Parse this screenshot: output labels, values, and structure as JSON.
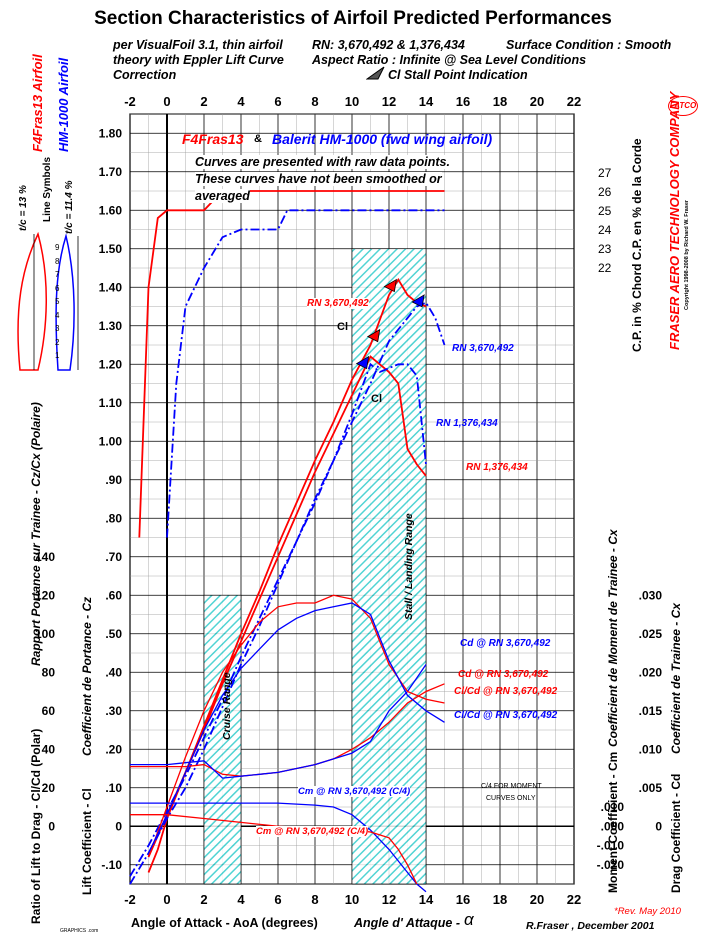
{
  "title": "Section Characteristics of Airfoil Predicted Performances",
  "subtitle": {
    "left1": "per VisualFoil 3.1, thin airfoil",
    "left2": "theory with Eppler Lift Curve",
    "left3": "Correction",
    "rn": "RN: 3,670,492  &  1,376,434",
    "surface": "Surface Condition : Smooth",
    "aspect1": "Aspect Ratio : Infinite @ Sea Level Conditions",
    "stall_indication": "Cl Stall Point Indication"
  },
  "legend": {
    "airfoil_red": "F4Fras13",
    "amp": "&",
    "airfoil_blue": "Balerit HM-1000 (fwd wing airfoil)",
    "note1": "Curves are presented with raw data points.",
    "note2": "These curves have not been smoothed or",
    "note3": "averaged"
  },
  "left_panel": {
    "red_airfoil": "F4Fras13 Airfoil",
    "blue_airfoil": "HM-1000 Airfoil",
    "line_symbols": "Line Symbols",
    "red_tc": "t/c = 13 %",
    "blue_tc": "t/c = 11.4 %",
    "cp_ticks": [
      "1",
      "2",
      "3",
      "4",
      "5",
      "6",
      "7",
      "8",
      "9"
    ]
  },
  "right_panel": {
    "company": "FRASER AERO TECHNOLOGY COMPANY",
    "logo": "FATCO",
    "copyright": "Copyright 1998-2008 by Richard W. Fraser",
    "cp_label": "C.P. in % Chord  C.P. en % de la Corde",
    "cp_ticks": [
      "27",
      "26",
      "25",
      "24",
      "23",
      "22"
    ]
  },
  "axes": {
    "x_label": "Angle of Attack - AoA (degrees)",
    "x_label_fr": "Angle d' Attaque -",
    "x_symbol": "α",
    "x_ticks": [
      "-2",
      "0",
      "2",
      "4",
      "6",
      "8",
      "10",
      "12",
      "14",
      "16",
      "18",
      "20",
      "22"
    ],
    "cl_ticks": [
      "1.80",
      "1.70",
      "1.60",
      "1.50",
      "1.40",
      "1.30",
      "1.20",
      "1.10",
      "1.00",
      ".90",
      ".80",
      ".70",
      ".60",
      ".50",
      ".40",
      ".30",
      ".20",
      ".10",
      "0",
      "-.10"
    ],
    "ld_ticks": [
      "140",
      "120",
      "100",
      "80",
      "60",
      "40",
      "20",
      "0"
    ],
    "cd_ticks": [
      ".030",
      ".025",
      ".020",
      ".015",
      ".010",
      ".005",
      "0"
    ],
    "cm_ticks": [
      ".010",
      ".000",
      "-.010",
      "-.020"
    ],
    "y_lift": "Lift Coefficient - Cl",
    "y_lift_fr": "Coefficient de Portance - Cz",
    "y_ld": "Ratio of Lift to Drag - Cl/Cd (Polar)",
    "y_ld_fr": "Rapport Portance sur Trainee - Cz/Cx (Polaire)",
    "y_cm": "Moment Coefficient - Cm",
    "y_cm_fr": "Coefficient de Moment de Trainee - Cx",
    "y_cd": "Drag Coefficient - Cd",
    "y_cd_fr": "Coefficient de Trainee - Cx"
  },
  "annotations": {
    "rn_high_red": "RN 3,670,492",
    "cl1": "Cl",
    "cl2": "Cl",
    "rn_high_blue": "RN 3,670,492",
    "rn_low_blue": "RN 1,376,434",
    "rn_low_red": "RN 1,376,434",
    "stall_range": "Stall / Landing Range",
    "cruise_range": "Cruise Range",
    "cd_blue": "Cd @ RN 3,670,492",
    "cd_red": "Cd @ RN 3,670,492",
    "clcd_red": "Cl/Cd @ RN 3,670,492",
    "clcd_blue": "Cl/Cd @ RN 3,670,492",
    "cm_blue": "Cm @ RN 3,670,492 (C/4)",
    "cm_red": "Cm @ RN 3,670,492 (C/4)",
    "moment_note1": "C/4 FOR MOMENT",
    "moment_note2": "CURVES ONLY"
  },
  "footer": {
    "rev": "*Rev. May 2010",
    "author": "R.Fraser ,  December 2001",
    "graphic": "GRAPHICS .com"
  },
  "colors": {
    "red": "#ff0000",
    "blue": "#0000ff",
    "hatch": "#66dddd"
  },
  "chart_data": {
    "type": "line",
    "title": "Section Characteristics of Airfoil Predicted Performances",
    "xlabel": "Angle of Attack - AoA (degrees)",
    "ylabel": "Lift Coefficient - Cl",
    "xlim": [
      -2,
      22
    ],
    "ylim": [
      -0.15,
      1.85
    ],
    "grid": true,
    "ranges": [
      {
        "name": "Cruise Range",
        "x": [
          2,
          4
        ],
        "y": [
          -0.15,
          0.6
        ]
      },
      {
        "name": "Stall / Landing Range",
        "x": [
          10,
          14
        ],
        "y": [
          -0.15,
          1.5
        ]
      }
    ],
    "series": [
      {
        "name": "F4Fras13",
        "color": "#ff0000",
        "dash": false,
        "x": [
          -1,
          -0.5,
          0,
          1,
          2,
          3,
          4,
          5,
          6,
          7,
          8,
          9,
          10,
          11,
          12,
          12.5,
          13,
          13.5,
          14
        ],
        "y": [
          -0.12,
          -0.06,
          0.02,
          0.14,
          0.26,
          0.38,
          0.5,
          0.61,
          0.73,
          0.84,
          0.95,
          1.05,
          1.16,
          1.25,
          1.38,
          1.42,
          1.38,
          1.36,
          1.35
        ]
      },
      {
        "name": "F4Fras13",
        "color": "#ff0000",
        "dash": false,
        "x": [
          -1,
          0,
          1,
          2,
          3,
          4,
          5,
          6,
          7,
          8,
          9,
          10,
          11,
          12,
          12.5,
          13,
          13.5,
          14
        ],
        "y": [
          -0.08,
          0.03,
          0.14,
          0.25,
          0.37,
          0.48,
          0.59,
          0.7,
          0.81,
          0.92,
          1.02,
          1.12,
          1.22,
          1.18,
          1.15,
          0.98,
          0.94,
          0.91
        ]
      },
      {
        "name": "Balerit HM-1000 (fwd wing airfoil)",
        "color": "#0000ff",
        "dash": true,
        "x": [
          -2,
          -1,
          0,
          1,
          2,
          3,
          4,
          5,
          6,
          7,
          8,
          9,
          10,
          11,
          12,
          13,
          13.5,
          14,
          14.5,
          15
        ],
        "y": [
          -0.15,
          -0.07,
          0.02,
          0.1,
          0.2,
          0.31,
          0.42,
          0.52,
          0.63,
          0.74,
          0.85,
          0.95,
          1.05,
          1.15,
          1.26,
          1.32,
          1.35,
          1.36,
          1.32,
          1.25
        ]
      },
      {
        "name": "Balerit HM-1000 (fwd wing airfoil)",
        "color": "#0000ff",
        "dash": true,
        "x": [
          -2,
          -1,
          0,
          1,
          2,
          3,
          4,
          5,
          6,
          7,
          8,
          9,
          10,
          11,
          11.5,
          12,
          12.5,
          13,
          13.5,
          14
        ],
        "y": [
          -0.13,
          -0.05,
          0.04,
          0.13,
          0.23,
          0.33,
          0.44,
          0.54,
          0.64,
          0.74,
          0.84,
          0.95,
          1.07,
          1.2,
          1.18,
          1.19,
          1.2,
          1.2,
          1.17,
          0.94
        ]
      },
      {
        "name": "F4Fras13",
        "color": "#ff0000",
        "dash": false,
        "x": [
          -1.5,
          -1,
          -0.5,
          0,
          0.5,
          1,
          2,
          3,
          4,
          5,
          6,
          7,
          8,
          9,
          10,
          11,
          12,
          13,
          14,
          15
        ],
        "y": [
          0.75,
          1.4,
          1.58,
          1.6,
          1.6,
          1.6,
          1.6,
          1.65,
          1.65,
          1.65,
          1.65,
          1.65,
          1.65,
          1.65,
          1.65,
          1.65,
          1.65,
          1.65,
          1.65,
          1.65
        ]
      },
      {
        "name": "Balerit HM-1000 (fwd wing airfoil)",
        "color": "#0000ff",
        "dash": true,
        "x": [
          0,
          0.5,
          1,
          2,
          3,
          4,
          5,
          6,
          6.5,
          7,
          8,
          10,
          12,
          14,
          15
        ],
        "y": [
          0.75,
          1.15,
          1.35,
          1.45,
          1.53,
          1.55,
          1.55,
          1.55,
          1.6,
          1.6,
          1.6,
          1.6,
          1.6,
          1.6,
          1.6
        ]
      },
      {
        "name": "Cd",
        "color": "#ff0000",
        "dash": false,
        "x": [
          -2,
          -1,
          0,
          1,
          2,
          3,
          4,
          5,
          6,
          7,
          8,
          9,
          10,
          11,
          12,
          13,
          14,
          15
        ],
        "y": [
          0.155,
          0.155,
          0.155,
          0.155,
          0.16,
          0.135,
          0.13,
          0.135,
          0.14,
          0.15,
          0.16,
          0.175,
          0.2,
          0.23,
          0.27,
          0.32,
          0.35,
          0.37
        ]
      },
      {
        "name": "Cd",
        "color": "#0000ff",
        "dash": false,
        "x": [
          -2,
          -1,
          0,
          1,
          2,
          3,
          4,
          5,
          6,
          7,
          8,
          9,
          10,
          11,
          12,
          13,
          14
        ],
        "y": [
          0.16,
          0.16,
          0.16,
          0.165,
          0.17,
          0.125,
          0.13,
          0.135,
          0.14,
          0.15,
          0.16,
          0.175,
          0.19,
          0.22,
          0.3,
          0.35,
          0.42
        ]
      },
      {
        "name": "Cl/Cd",
        "color": "#ff0000",
        "dash": false,
        "x": [
          -1,
          0,
          1,
          2,
          3,
          4,
          5,
          6,
          7,
          8,
          9,
          10,
          11,
          12,
          13,
          14,
          15
        ],
        "y": [
          -0.08,
          0.05,
          0.18,
          0.3,
          0.4,
          0.47,
          0.53,
          0.57,
          0.58,
          0.58,
          0.6,
          0.59,
          0.54,
          0.42,
          0.35,
          0.33,
          0.32
        ]
      },
      {
        "name": "Cl/Cd",
        "color": "#0000ff",
        "dash": false,
        "x": [
          -1,
          0,
          1,
          2,
          3,
          4,
          5,
          6,
          7,
          8,
          9,
          10,
          11,
          12,
          13,
          14,
          15
        ],
        "y": [
          -0.07,
          0.03,
          0.14,
          0.25,
          0.34,
          0.41,
          0.46,
          0.51,
          0.54,
          0.56,
          0.57,
          0.58,
          0.55,
          0.43,
          0.34,
          0.3,
          0.27
        ]
      },
      {
        "name": "Cm",
        "color": "#0000ff",
        "dash": false,
        "x": [
          -2,
          0,
          2,
          4,
          6,
          8,
          9,
          10,
          11,
          12,
          13,
          13.5,
          14
        ],
        "y": [
          0.06,
          0.06,
          0.06,
          0.06,
          0.06,
          0.055,
          0.05,
          0.03,
          -0.01,
          -0.06,
          -0.12,
          -0.15,
          -0.17
        ]
      },
      {
        "name": "Cm",
        "color": "#ff0000",
        "dash": false,
        "x": [
          -2,
          0,
          2,
          4,
          6,
          8,
          10,
          11,
          12,
          12.5,
          13,
          13.5
        ],
        "y": [
          0.03,
          0.03,
          0.02,
          0.01,
          0.0,
          -0.005,
          -0.01,
          -0.015,
          -0.03,
          -0.06,
          -0.1,
          -0.15
        ]
      }
    ]
  }
}
